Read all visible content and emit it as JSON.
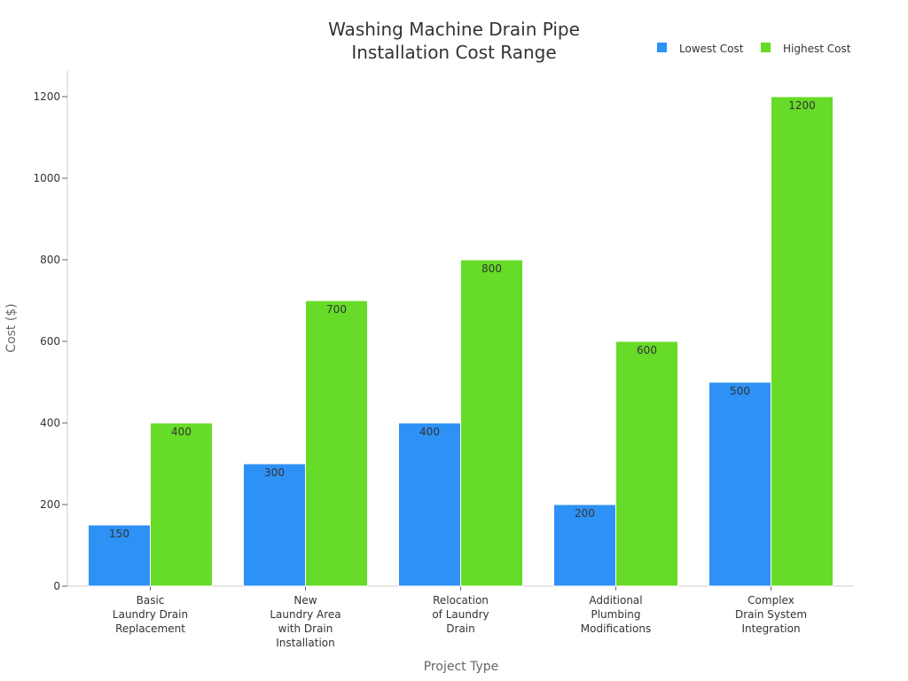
{
  "chart_data": {
    "type": "bar",
    "title": [
      "Washing Machine Drain Pipe",
      "Installation Cost Range"
    ],
    "xlabel": "Project Type",
    "ylabel": "Cost ($)",
    "ylim": [
      0,
      1260
    ],
    "yticks": [
      0,
      200,
      400,
      600,
      800,
      1000,
      1200
    ],
    "categories": [
      [
        "Basic",
        "Laundry Drain",
        "Replacement"
      ],
      [
        "New",
        "Laundry Area",
        "with Drain",
        "Installation"
      ],
      [
        "Relocation",
        "of Laundry",
        "Drain"
      ],
      [
        "Additional",
        "Plumbing",
        "Modifications"
      ],
      [
        "Complex",
        "Drain System",
        "Integration"
      ]
    ],
    "series": [
      {
        "name": "Lowest Cost",
        "color": "#2e91f5",
        "values": [
          150,
          300,
          400,
          200,
          500
        ]
      },
      {
        "name": "Highest Cost",
        "color": "#66db28",
        "values": [
          400,
          700,
          800,
          600,
          1200
        ]
      }
    ],
    "legend_position": "top-right",
    "grid": false
  }
}
